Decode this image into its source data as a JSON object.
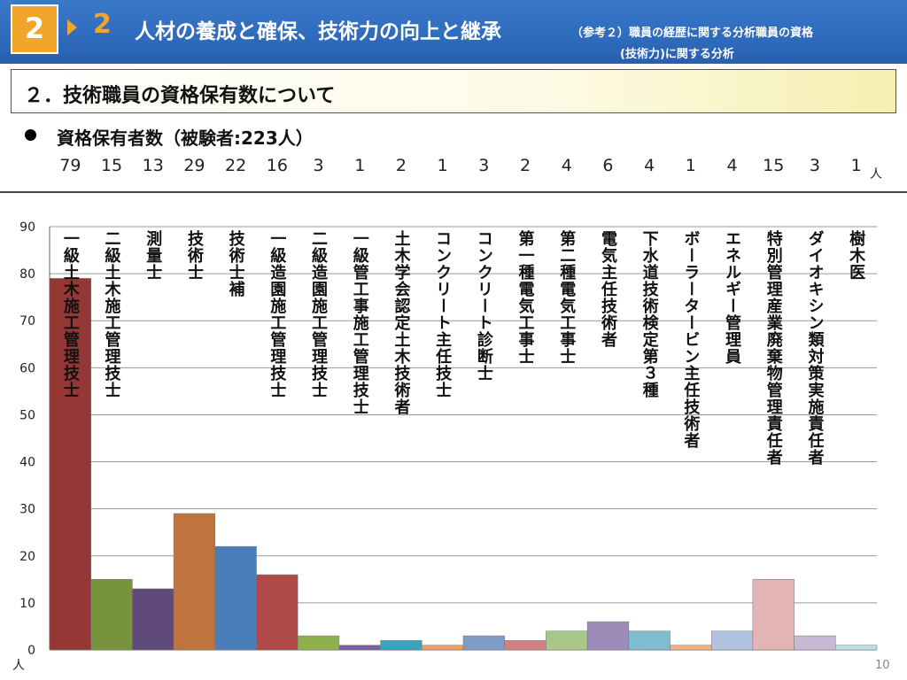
{
  "header": {
    "badge": "2",
    "section_number": "2",
    "title": "人材の養成と確保、技術力の向上と継承",
    "subtitle_line1": "（参考２）職員の経歴に関する分析職員の資格",
    "subtitle_line2": "(技術力)に関する分析"
  },
  "section": {
    "title": "２．技術職員の資格保有数について"
  },
  "bullet": {
    "text": "資格保有者数（被験者:223人）"
  },
  "counts_unit": "人",
  "page_number": "10",
  "colors": {
    "header_bg": "#2f6bbd",
    "badge": "#f2a52a",
    "bars": [
      "#953735",
      "#77933c",
      "#604a7b",
      "#c0733c",
      "#4a7ebb",
      "#b04a48",
      "#8fb14b",
      "#7a5fa0",
      "#3aa3bd",
      "#f0a05a",
      "#7f9cc9",
      "#d08080",
      "#aac78a",
      "#9e8bb8",
      "#7ebcd0",
      "#f4b07a",
      "#b0c2e0",
      "#e2b4b4",
      "#c8b8d5",
      "#bcdde8"
    ]
  },
  "chart_data": {
    "type": "bar",
    "categories": [
      "一級土木施工管理技士",
      "二級土木施工管理技士",
      "測量士",
      "技術士",
      "技術士補",
      "一級造園施工管理技士",
      "二級造園施工管理技士",
      "一級管工事施工管理技士",
      "土木学会認定土木技術者",
      "コンクリート主任技士",
      "コンクリート診断士",
      "第一種電気工事士",
      "第二種電気工事士",
      "電気主任技術者",
      "下水道技術検定第３種",
      "ボーラータービン主任技術者",
      "エネルギー管理員",
      "特別管理産業廃棄物管理責任者",
      "ダイオキシン類対策実施責任者",
      "樹木医"
    ],
    "values": [
      79,
      15,
      13,
      29,
      22,
      16,
      3,
      1,
      2,
      1,
      3,
      2,
      4,
      6,
      4,
      1,
      4,
      15,
      3,
      1
    ],
    "ylim": [
      0,
      90
    ],
    "yticks": [
      0,
      10,
      20,
      30,
      40,
      50,
      60,
      70,
      80,
      90
    ],
    "ylabel": "人",
    "grid": true
  }
}
